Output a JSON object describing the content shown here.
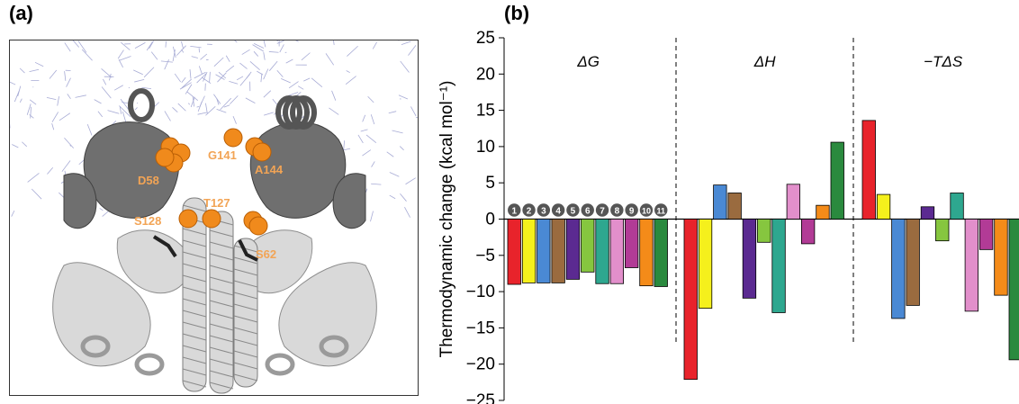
{
  "panel_a": {
    "label": "(a)",
    "residue_labels": [
      "D58",
      "G141",
      "A144",
      "T127",
      "S128",
      "S62"
    ],
    "colors": {
      "helix": "#d9d9d9",
      "dark": "#6f6f6f",
      "sphere": "#f08a1c",
      "label": "#f2a455",
      "dna": "#8a8fc7"
    }
  },
  "panel_b": {
    "label": "(b)"
  },
  "chart_data": {
    "type": "bar",
    "ylabel": "Thermodynamic change (kcal mol⁻¹)",
    "ylim": [
      -25,
      25
    ],
    "yticks": [
      25,
      20,
      15,
      10,
      5,
      0,
      -5,
      -10,
      -15,
      -20,
      -25
    ],
    "groups": [
      {
        "name": "ΔG",
        "values": [
          -9.0,
          -8.8,
          -8.8,
          -8.8,
          -8.3,
          -7.3,
          -8.9,
          -8.9,
          -6.7,
          -9.2,
          -9.3
        ]
      },
      {
        "name": "ΔH",
        "values": [
          -22.1,
          -12.3,
          4.7,
          3.6,
          -10.9,
          -3.2,
          -12.9,
          4.8,
          -3.4,
          1.9,
          10.6
        ]
      },
      {
        "name": "−TΔS",
        "values": [
          13.6,
          3.4,
          -13.7,
          -11.9,
          1.7,
          -3.0,
          3.6,
          -12.7,
          -4.2,
          -10.5,
          -19.4
        ]
      }
    ],
    "variant_markers": [
      "1",
      "2",
      "3",
      "4",
      "5",
      "6",
      "7",
      "8",
      "9",
      "10",
      "11"
    ],
    "colors": [
      "#e8232b",
      "#f5f01c",
      "#4a89d4",
      "#9a6b3f",
      "#5b2a91",
      "#86c63f",
      "#2ea78f",
      "#e28fcb",
      "#b23b96",
      "#f48b19",
      "#2a8a3e"
    ]
  }
}
